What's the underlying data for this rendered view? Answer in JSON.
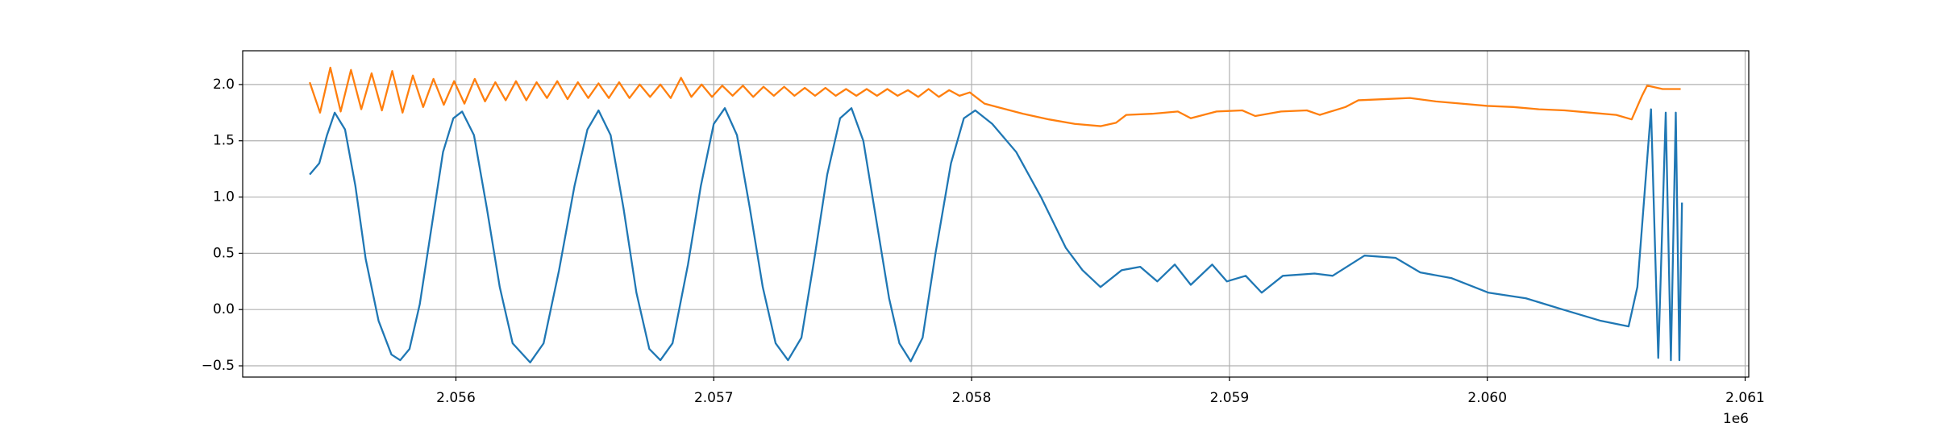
{
  "chart_data": {
    "type": "line",
    "grid": true,
    "xlim": [
      2055173,
      2061014
    ],
    "ylim": [
      -0.6,
      2.3
    ],
    "xticks": [
      {
        "value": 2056000,
        "label": "2.056"
      },
      {
        "value": 2057000,
        "label": "2.057"
      },
      {
        "value": 2058000,
        "label": "2.058"
      },
      {
        "value": 2059000,
        "label": "2.059"
      },
      {
        "value": 2060000,
        "label": "2.060"
      },
      {
        "value": 2061000,
        "label": "2.061"
      }
    ],
    "x_offset_label": "1e6",
    "yticks": [
      {
        "value": -0.5,
        "label": "−0.5"
      },
      {
        "value": 0,
        "label": "0.0"
      },
      {
        "value": 0.5,
        "label": "0.5"
      },
      {
        "value": 1,
        "label": "1.0"
      },
      {
        "value": 1.5,
        "label": "1.5"
      },
      {
        "value": 2,
        "label": "2.0"
      }
    ],
    "series": [
      {
        "color": "#1f77b4",
        "x": [
          2055433,
          2055470,
          2055500,
          2055530,
          2055570,
          2055610,
          2055650,
          2055700,
          2055750,
          2055784,
          2055820,
          2055860,
          2055900,
          2055950,
          2055990,
          2056024,
          2056070,
          2056120,
          2056170,
          2056220,
          2056288,
          2056340,
          2056400,
          2056460,
          2056510,
          2056553,
          2056600,
          2056650,
          2056700,
          2056750,
          2056793,
          2056840,
          2056900,
          2056950,
          2057000,
          2057043,
          2057090,
          2057140,
          2057190,
          2057240,
          2057288,
          2057340,
          2057390,
          2057440,
          2057490,
          2057534,
          2057580,
          2057630,
          2057680,
          2057720,
          2057764,
          2057810,
          2057860,
          2057920,
          2057970,
          2058014,
          2058080,
          2058173,
          2058269,
          2058365,
          2058430,
          2058500,
          2058582,
          2058654,
          2058720,
          2058788,
          2058850,
          2058933,
          2058990,
          2059063,
          2059125,
          2059207,
          2059330,
          2059400,
          2059524,
          2059644,
          2059740,
          2059860,
          2060005,
          2060150,
          2060293,
          2060440,
          2060548,
          2060582,
          2060635,
          2060663,
          2060692,
          2060712,
          2060731,
          2060745,
          2060755
        ],
        "values": [
          1.2,
          1.3,
          1.55,
          1.75,
          1.6,
          1.1,
          0.45,
          -0.1,
          -0.4,
          -0.45,
          -0.35,
          0.05,
          0.65,
          1.4,
          1.7,
          1.76,
          1.55,
          0.9,
          0.2,
          -0.3,
          -0.47,
          -0.3,
          0.35,
          1.1,
          1.6,
          1.77,
          1.55,
          0.9,
          0.15,
          -0.35,
          -0.45,
          -0.3,
          0.4,
          1.1,
          1.65,
          1.79,
          1.55,
          0.9,
          0.2,
          -0.3,
          -0.45,
          -0.25,
          0.45,
          1.2,
          1.7,
          1.79,
          1.5,
          0.8,
          0.1,
          -0.3,
          -0.46,
          -0.25,
          0.5,
          1.3,
          1.7,
          1.77,
          1.65,
          1.4,
          1.0,
          0.55,
          0.35,
          0.2,
          0.35,
          0.38,
          0.25,
          0.4,
          0.22,
          0.4,
          0.25,
          0.3,
          0.15,
          0.3,
          0.32,
          0.3,
          0.48,
          0.46,
          0.33,
          0.28,
          0.15,
          0.1,
          0.0,
          -0.1,
          -0.15,
          0.2,
          1.78,
          -0.43,
          1.75,
          -0.45,
          1.75,
          -0.45,
          0.95
        ]
      },
      {
        "color": "#ff7f0e",
        "x": [
          2055433,
          2055473,
          2055513,
          2055553,
          2055593,
          2055633,
          2055673,
          2055713,
          2055753,
          2055793,
          2055833,
          2055873,
          2055913,
          2055953,
          2055993,
          2056033,
          2056073,
          2056113,
          2056153,
          2056193,
          2056233,
          2056273,
          2056313,
          2056353,
          2056393,
          2056433,
          2056473,
          2056513,
          2056553,
          2056593,
          2056633,
          2056673,
          2056713,
          2056753,
          2056793,
          2056833,
          2056873,
          2056913,
          2056953,
          2056993,
          2057033,
          2057073,
          2057113,
          2057153,
          2057193,
          2057233,
          2057273,
          2057313,
          2057353,
          2057393,
          2057433,
          2057473,
          2057513,
          2057553,
          2057593,
          2057633,
          2057673,
          2057713,
          2057753,
          2057793,
          2057833,
          2057873,
          2057913,
          2057953,
          2057993,
          2058050,
          2058100,
          2058200,
          2058300,
          2058400,
          2058500,
          2058560,
          2058600,
          2058700,
          2058800,
          2058850,
          2058950,
          2059050,
          2059100,
          2059200,
          2059300,
          2059350,
          2059450,
          2059500,
          2059600,
          2059700,
          2059800,
          2059900,
          2060000,
          2060100,
          2060200,
          2060300,
          2060400,
          2060500,
          2060560,
          2060600,
          2060620,
          2060680,
          2060750
        ],
        "values": [
          2.02,
          1.75,
          2.15,
          1.76,
          2.13,
          1.78,
          2.1,
          1.77,
          2.12,
          1.75,
          2.08,
          1.8,
          2.05,
          1.82,
          2.03,
          1.83,
          2.05,
          1.85,
          2.02,
          1.86,
          2.03,
          1.86,
          2.02,
          1.88,
          2.03,
          1.87,
          2.02,
          1.88,
          2.01,
          1.88,
          2.02,
          1.88,
          2.0,
          1.89,
          2.0,
          1.88,
          2.06,
          1.89,
          2.0,
          1.89,
          1.99,
          1.9,
          1.99,
          1.89,
          1.98,
          1.9,
          1.98,
          1.9,
          1.97,
          1.9,
          1.97,
          1.9,
          1.96,
          1.9,
          1.96,
          1.9,
          1.96,
          1.9,
          1.95,
          1.89,
          1.96,
          1.89,
          1.95,
          1.9,
          1.93,
          1.83,
          1.8,
          1.74,
          1.69,
          1.65,
          1.63,
          1.66,
          1.73,
          1.74,
          1.76,
          1.7,
          1.76,
          1.77,
          1.72,
          1.76,
          1.77,
          1.73,
          1.8,
          1.86,
          1.87,
          1.88,
          1.85,
          1.83,
          1.81,
          1.8,
          1.78,
          1.77,
          1.75,
          1.73,
          1.69,
          1.9,
          1.99,
          1.96,
          1.96
        ]
      }
    ]
  }
}
